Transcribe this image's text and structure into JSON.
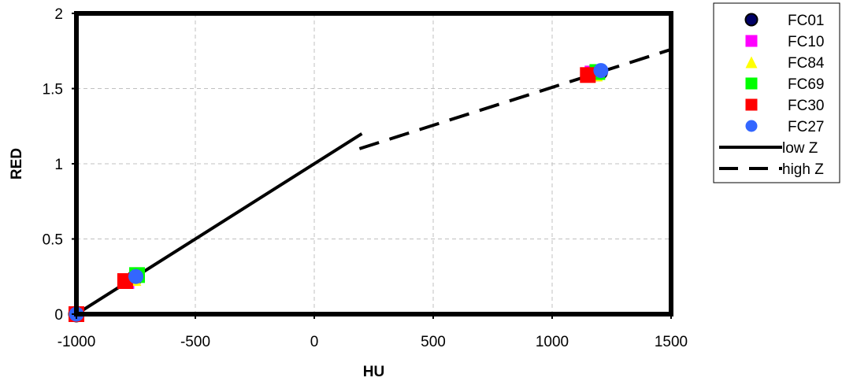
{
  "chart_data": {
    "type": "scatter",
    "title": "",
    "xlabel": "HU",
    "ylabel": "RED",
    "xlim": [
      -1000,
      1500
    ],
    "ylim": [
      0,
      2
    ],
    "xticks": [
      -1000,
      -500,
      0,
      500,
      1000,
      1500
    ],
    "yticks": [
      0,
      0.5,
      1,
      1.5,
      2
    ],
    "xtick_labels": [
      "-1000",
      "-500",
      "0",
      "500",
      "1000",
      "1500"
    ],
    "ytick_labels": [
      "0",
      "0.5",
      "1",
      "1.5",
      "2"
    ],
    "grid": true,
    "legend_position": "right",
    "series": [
      {
        "name": "FC01",
        "marker": "circle",
        "color": "#000066",
        "points": [
          [
            -1000,
            0.0
          ],
          [
            -750,
            0.25
          ],
          [
            1200,
            1.61
          ]
        ]
      },
      {
        "name": "FC10",
        "marker": "square",
        "color": "#ff00ff",
        "points": [
          [
            -1000,
            0.0
          ],
          [
            -790,
            0.22
          ],
          [
            1170,
            1.6
          ]
        ]
      },
      {
        "name": "FC84",
        "marker": "triangle",
        "color": "#ffff00",
        "points": [
          [
            -1000,
            0.0
          ],
          [
            -760,
            0.24
          ],
          [
            1180,
            1.6
          ]
        ]
      },
      {
        "name": "FC69",
        "marker": "square",
        "color": "#00ff00",
        "points": [
          [
            -1000,
            0.0
          ],
          [
            -745,
            0.26
          ],
          [
            1190,
            1.61
          ]
        ]
      },
      {
        "name": "FC30",
        "marker": "square",
        "color": "#ff0000",
        "points": [
          [
            -1000,
            0.0
          ],
          [
            -795,
            0.22
          ],
          [
            1150,
            1.59
          ]
        ]
      },
      {
        "name": "FC27",
        "marker": "circle",
        "color": "#3366ff",
        "points": [
          [
            -1000,
            0.0
          ],
          [
            -750,
            0.25
          ],
          [
            1205,
            1.62
          ]
        ]
      }
    ],
    "lines": [
      {
        "name": "low Z",
        "style": "solid",
        "color": "#000000",
        "points": [
          [
            -1000,
            0.0
          ],
          [
            200,
            1.2
          ]
        ]
      },
      {
        "name": "high Z",
        "style": "dashed",
        "color": "#000000",
        "points": [
          [
            190,
            1.1
          ],
          [
            1500,
            1.76
          ]
        ]
      }
    ]
  }
}
